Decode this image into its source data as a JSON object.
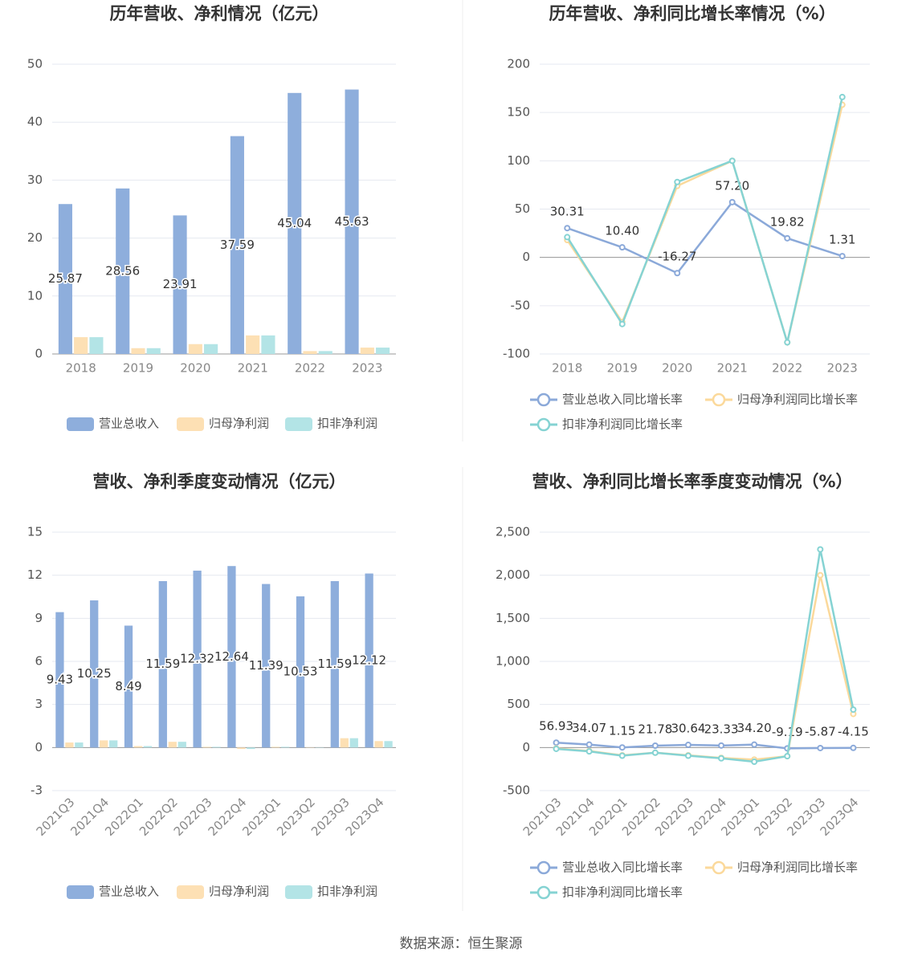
{
  "chart_data": [
    {
      "type": "bar",
      "title": "历年营收、净利情况（亿元）",
      "categories": [
        "2018",
        "2019",
        "2020",
        "2021",
        "2022",
        "2023"
      ],
      "series": [
        {
          "name": "营业总收入",
          "color": "#8eaedc",
          "values": [
            25.87,
            28.56,
            23.91,
            37.59,
            45.04,
            45.63
          ],
          "value_labels": [
            "25.87",
            "28.56",
            "23.91",
            "37.59",
            "45.04",
            "45.63"
          ]
        },
        {
          "name": "归母净利润",
          "color": "#fde0b4",
          "values": [
            2.9,
            1.0,
            1.7,
            3.2,
            0.5,
            1.1
          ]
        },
        {
          "name": "扣非净利润",
          "color": "#b3e4e6",
          "values": [
            2.9,
            1.0,
            1.7,
            3.2,
            0.5,
            1.1
          ]
        }
      ],
      "ylim": [
        0,
        50
      ],
      "yticks": [
        0,
        10,
        20,
        30,
        40,
        50
      ],
      "grid": true
    },
    {
      "type": "line",
      "title": "历年营收、净利同比增长率情况（%）",
      "categories": [
        "2018",
        "2019",
        "2020",
        "2021",
        "2022",
        "2023"
      ],
      "series": [
        {
          "name": "营业总收入同比增长率",
          "color": "#8ba9d9",
          "values": [
            30.31,
            10.4,
            -16.27,
            57.2,
            19.82,
            1.31
          ],
          "value_labels": [
            "30.31",
            "10.40",
            "-16.27",
            "57.20",
            "19.82",
            "1.31"
          ]
        },
        {
          "name": "归母净利润同比增长率",
          "color": "#fbd99b",
          "values": [
            18,
            -67,
            74,
            100,
            -88,
            158
          ]
        },
        {
          "name": "扣非净利润同比增长率",
          "color": "#85d3d3",
          "values": [
            21,
            -69,
            78,
            100,
            -88,
            166
          ]
        }
      ],
      "ylim": [
        -100,
        200
      ],
      "yticks": [
        -100,
        -50,
        0,
        50,
        100,
        150,
        200
      ],
      "grid": true
    },
    {
      "type": "bar",
      "title": "营收、净利季度变动情况（亿元）",
      "categories": [
        "2021Q3",
        "2021Q4",
        "2022Q1",
        "2022Q2",
        "2022Q3",
        "2022Q4",
        "2023Q1",
        "2023Q2",
        "2023Q3",
        "2023Q4"
      ],
      "series": [
        {
          "name": "营业总收入",
          "color": "#8eaedc",
          "values": [
            9.43,
            10.25,
            8.49,
            11.59,
            12.32,
            12.64,
            11.39,
            10.53,
            11.59,
            12.12
          ],
          "value_labels": [
            "9.43",
            "10.25",
            "8.49",
            "11.59",
            "12.32",
            "12.64",
            "11.39",
            "10.53",
            "11.59",
            "12.12"
          ]
        },
        {
          "name": "归母净利润",
          "color": "#fde0b4",
          "values": [
            0.35,
            0.5,
            0.1,
            0.4,
            0.05,
            -0.1,
            0.05,
            0.02,
            0.65,
            0.45
          ]
        },
        {
          "name": "扣非净利润",
          "color": "#b3e4e6",
          "values": [
            0.35,
            0.5,
            0.1,
            0.4,
            0.05,
            -0.1,
            0.05,
            0.02,
            0.65,
            0.45
          ]
        }
      ],
      "ylim": [
        -3,
        15
      ],
      "yticks": [
        -3,
        0,
        3,
        6,
        9,
        12,
        15
      ],
      "grid": true
    },
    {
      "type": "line",
      "title": "营收、净利同比增长率季度变动情况（%）",
      "categories": [
        "2021Q3",
        "2021Q4",
        "2022Q1",
        "2022Q2",
        "2022Q3",
        "2022Q4",
        "2023Q1",
        "2023Q2",
        "2023Q3",
        "2023Q4"
      ],
      "series": [
        {
          "name": "营业总收入同比增长率",
          "color": "#8ba9d9",
          "values": [
            56.93,
            34.07,
            1.15,
            21.78,
            30.64,
            23.33,
            34.2,
            -9.19,
            -5.87,
            -4.15
          ],
          "value_labels": [
            "56.93",
            "34.07",
            "1.15",
            "21.78",
            "30.64",
            "23.33",
            "34.20",
            "-9.19",
            "-5.87",
            "-4.15"
          ]
        },
        {
          "name": "归母净利润同比增长率",
          "color": "#fbd99b",
          "values": [
            -10,
            -40,
            -90,
            -60,
            -90,
            -120,
            -140,
            -100,
            2000,
            390
          ]
        },
        {
          "name": "扣非净利润同比增长率",
          "color": "#85d3d3",
          "values": [
            -15,
            -45,
            -95,
            -60,
            -95,
            -125,
            -165,
            -100,
            2300,
            440
          ]
        }
      ],
      "ylim": [
        -500,
        2500
      ],
      "yticks": [
        -500,
        0,
        500,
        {
          "value": 1000,
          "label": "1,000"
        },
        {
          "value": 1500,
          "label": "1,500"
        },
        {
          "value": 2000,
          "label": "2,000"
        },
        {
          "value": 2500,
          "label": "2,500"
        }
      ],
      "grid": true
    }
  ],
  "source": "数据来源：恒生聚源"
}
